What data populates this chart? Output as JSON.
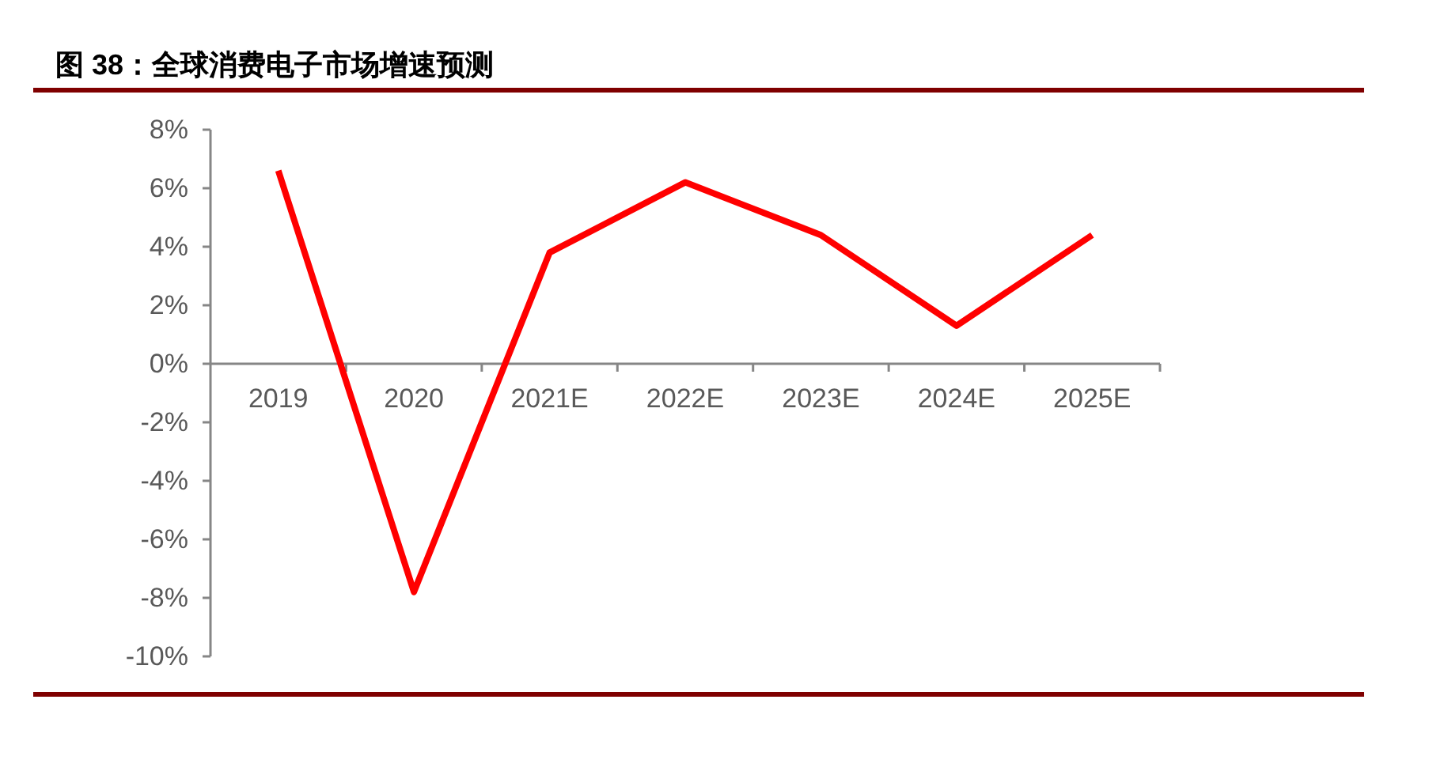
{
  "chart_data": {
    "type": "line",
    "title": "图 38：全球消费电子市场增速预测",
    "categories": [
      "2019",
      "2020",
      "2021E",
      "2022E",
      "2023E",
      "2024E",
      "2025E"
    ],
    "series": [
      {
        "color": "#ff0000",
        "values": [
          6.6,
          -7.8,
          3.8,
          6.2,
          4.4,
          1.3,
          4.4
        ]
      }
    ],
    "ylim": [
      -10,
      8
    ],
    "yticks": [
      {
        "value": -10,
        "label": "-10%"
      },
      {
        "value": -8,
        "label": "-8%"
      },
      {
        "value": -6,
        "label": "-6%"
      },
      {
        "value": -4,
        "label": "-4%"
      },
      {
        "value": -2,
        "label": "-2%"
      },
      {
        "value": 0,
        "label": "0%"
      },
      {
        "value": 2,
        "label": "2%"
      },
      {
        "value": 4,
        "label": "4%"
      },
      {
        "value": 6,
        "label": "6%"
      },
      {
        "value": 8,
        "label": "8%"
      }
    ]
  }
}
